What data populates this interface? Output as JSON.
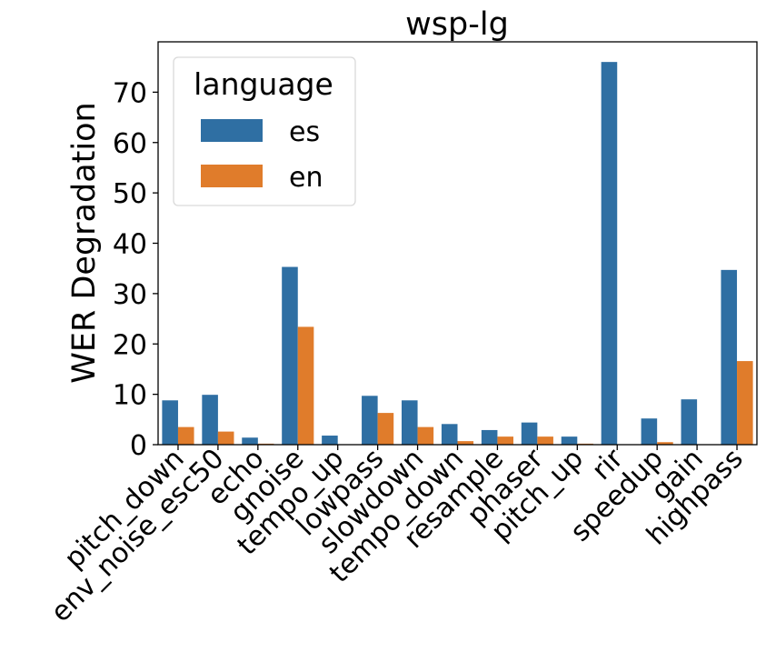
{
  "chart_data": {
    "type": "bar",
    "title": "wsp-lg",
    "xlabel": "",
    "ylabel": "WER Degradation",
    "ylim": [
      0,
      80
    ],
    "yticks": [
      0,
      10,
      20,
      30,
      40,
      50,
      60,
      70
    ],
    "grid": false,
    "legend": {
      "title": "language",
      "placement": "top-left"
    },
    "categories": [
      "pitch_down",
      "env_noise_esc50",
      "echo",
      "gnoise",
      "tempo_up",
      "lowpass",
      "slowdown",
      "tempo_down",
      "resample",
      "phaser",
      "pitch_up",
      "rir",
      "speedup",
      "gain",
      "highpass"
    ],
    "series": [
      {
        "name": "es",
        "color": "#2f6fa3",
        "values": [
          8.8,
          9.9,
          1.4,
          35.3,
          1.8,
          9.7,
          8.8,
          4.1,
          2.9,
          4.4,
          1.6,
          76.0,
          5.2,
          9.0,
          34.7
        ]
      },
      {
        "name": "en",
        "color": "#e07c2b",
        "values": [
          3.5,
          2.6,
          0.2,
          23.4,
          0.0,
          6.3,
          3.5,
          0.7,
          1.6,
          1.6,
          0.2,
          0.0,
          0.5,
          0.0,
          16.6
        ]
      }
    ]
  }
}
